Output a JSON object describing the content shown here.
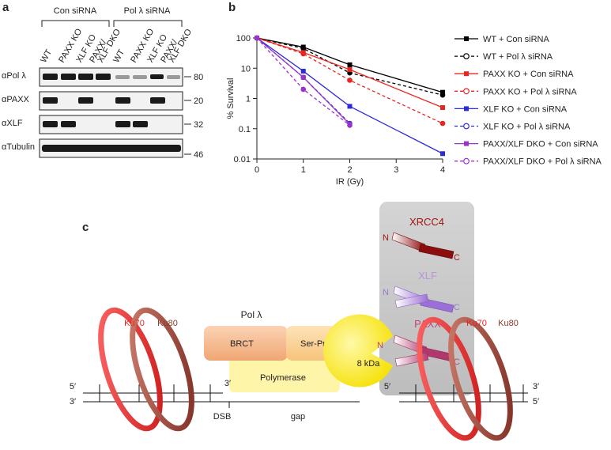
{
  "blot": {
    "panel": "a",
    "groups": [
      "Con siRNA",
      "Pol λ siRNA"
    ],
    "lanes": [
      [
        "WT"
      ],
      [
        "PAXX KO"
      ],
      [
        "XLF KO"
      ],
      [
        "PAXX/",
        "XLF DKO"
      ],
      [
        "WT"
      ],
      [
        "PAXX KO"
      ],
      [
        "XLF KO"
      ],
      [
        "PAXX/",
        "XLF DKO"
      ]
    ],
    "rows": [
      {
        "antibody": "αPol λ",
        "marker": 80
      },
      {
        "antibody": "αPAXX",
        "marker": 20
      },
      {
        "antibody": "αXLF",
        "marker": 32
      },
      {
        "antibody": "αTubulin",
        "marker": 46
      }
    ]
  },
  "chart_data": {
    "type": "line",
    "panel": "b",
    "x_label": "IR (Gy)",
    "y_label": "% Survival",
    "x": [
      0,
      1,
      2,
      4
    ],
    "xlim": [
      0,
      4
    ],
    "xticks": [
      0,
      1,
      2,
      3,
      4
    ],
    "ylim": [
      0.01,
      100
    ],
    "yticks": [
      100,
      10,
      1,
      0.1,
      0.01
    ],
    "log_y": true,
    "grid": false,
    "legend": "right",
    "series": [
      {
        "name": "WT + Con siRNA",
        "color": "#000000",
        "dashed": false,
        "marker": "square",
        "values": [
          100,
          50,
          13,
          1.6
        ]
      },
      {
        "name": "WT + Pol λ siRNA",
        "color": "#000000",
        "dashed": true,
        "marker": "circle",
        "values": [
          100,
          45,
          7,
          1.3
        ]
      },
      {
        "name": "PAXX KO + Con siRNA",
        "color": "#e8251f",
        "dashed": false,
        "marker": "square",
        "values": [
          100,
          33,
          9,
          0.5
        ]
      },
      {
        "name": "PAXX KO + Pol λ siRNA",
        "color": "#e8251f",
        "dashed": true,
        "marker": "circle",
        "values": [
          100,
          30,
          4,
          0.15
        ]
      },
      {
        "name": "XLF KO + Con siRNA",
        "color": "#2b2bd9",
        "dashed": false,
        "marker": "square",
        "values": [
          100,
          8,
          0.55,
          0.015
        ]
      },
      {
        "name": "XLF KO + Pol λ siRNA",
        "color": "#2b2bd9",
        "dashed": true,
        "marker": "circle",
        "values": [
          100,
          5,
          0.15,
          null
        ]
      },
      {
        "name": "PAXX/XLF DKO + Con siRNA",
        "color": "#9a32cd",
        "dashed": false,
        "marker": "square",
        "values": [
          100,
          5,
          0.14,
          null
        ]
      },
      {
        "name": "PAXX/XLF DKO + Pol λ siRNA",
        "color": "#9a32cd",
        "dashed": true,
        "marker": "circle",
        "values": [
          100,
          2,
          0.13,
          null
        ]
      }
    ]
  },
  "diagram": {
    "panel": "c",
    "xrcc4": {
      "name": "XRCC4",
      "n": "N",
      "c": "C"
    },
    "xlf": {
      "name": "XLF",
      "n": "N",
      "c": "C"
    },
    "paxx": {
      "name": "PAXX",
      "n": "N",
      "c": "C"
    },
    "ku_left": {
      "ku70": "Ku70",
      "ku80": "Ku80"
    },
    "ku_right": {
      "ku70": "Ku70",
      "ku80": "Ku80"
    },
    "pol": {
      "name": "Pol λ",
      "brct": "BRCT",
      "serpro": "Ser-Pro",
      "polymerase": "Polymerase",
      "kda": "8 kDa"
    },
    "dna_left": {
      "top5": "5′",
      "bottom3": "3′",
      "end3": "3′",
      "dsb": "DSB"
    },
    "dna_right": {
      "top5": "5′",
      "end3": "3′",
      "end5": "5′"
    },
    "gap": "gap"
  }
}
